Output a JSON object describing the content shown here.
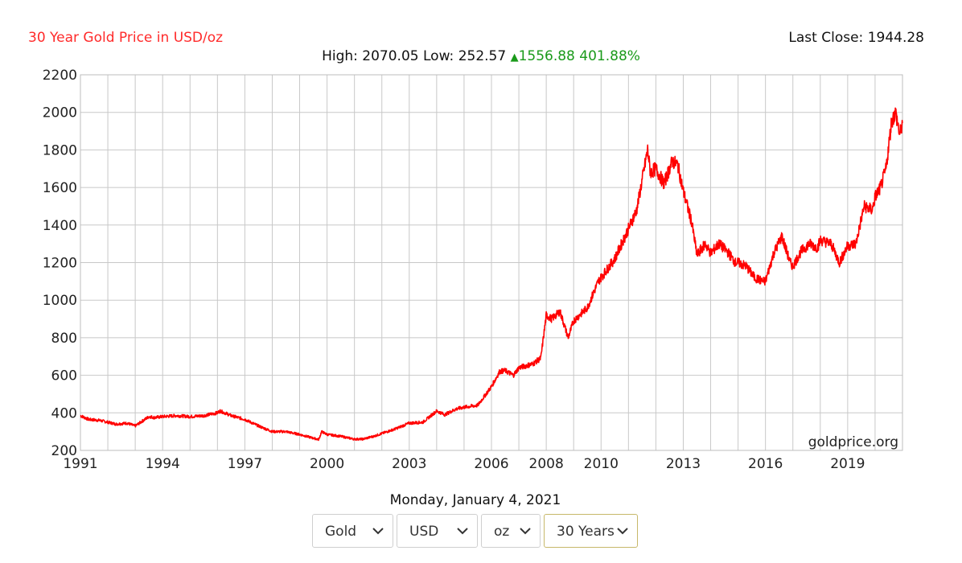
{
  "header": {
    "title": "30 Year Gold Price in USD/oz",
    "last_close_label": "Last Close:",
    "last_close_value": "1944.28",
    "high_label": "High:",
    "high_value": "2070.05",
    "low_label": "Low:",
    "low_value": "252.57",
    "change_value": "1556.88",
    "change_pct": "401.88%",
    "change_direction": "up"
  },
  "watermark": "goldprice.org",
  "date_text": "Monday, January 4, 2021",
  "controls": {
    "metal": "Gold",
    "currency": "USD",
    "unit": "oz",
    "range": "30 Years"
  },
  "colors": {
    "line": "#ff0000",
    "title": "#ff2a2a",
    "change": "#1a9a1a",
    "grid": "#c8c8c8"
  },
  "chart_data": {
    "type": "line",
    "title": "30 Year Gold Price in USD/oz",
    "xlabel": "",
    "ylabel": "",
    "xlim": [
      1991.0,
      2021.0
    ],
    "ylim": [
      200,
      2200
    ],
    "y_ticks": [
      200,
      400,
      600,
      800,
      1000,
      1200,
      1400,
      1600,
      1800,
      2000,
      2200
    ],
    "x_tick_labels": [
      {
        "label": "1991",
        "x": 1991.0
      },
      {
        "label": "1994",
        "x": 1994.0
      },
      {
        "label": "1997",
        "x": 1997.0
      },
      {
        "label": "2000",
        "x": 2000.0
      },
      {
        "label": "2003",
        "x": 2003.0
      },
      {
        "label": "2006",
        "x": 2006.0
      },
      {
        "label": "2008",
        "x": 2008.0
      },
      {
        "label": "2010",
        "x": 2010.0
      },
      {
        "label": "2013",
        "x": 2013.0
      },
      {
        "label": "2016",
        "x": 2016.0
      },
      {
        "label": "2019",
        "x": 2019.0
      }
    ],
    "grid": true,
    "series": [
      {
        "name": "Gold",
        "x": [
          1991.0,
          1991.3,
          1991.7,
          1992.0,
          1992.3,
          1992.7,
          1993.0,
          1993.2,
          1993.5,
          1993.7,
          1994.0,
          1994.5,
          1995.0,
          1995.5,
          1996.0,
          1996.1,
          1996.5,
          1997.0,
          1997.5,
          1998.0,
          1998.5,
          1999.0,
          1999.5,
          1999.7,
          1999.8,
          2000.0,
          2000.5,
          2001.0,
          2001.3,
          2001.7,
          2002.0,
          2002.5,
          2003.0,
          2003.5,
          2004.0,
          2004.3,
          2004.7,
          2005.0,
          2005.5,
          2006.0,
          2006.3,
          2006.5,
          2006.8,
          2007.0,
          2007.5,
          2007.8,
          2008.0,
          2008.2,
          2008.5,
          2008.8,
          2009.0,
          2009.5,
          2009.9,
          2010.0,
          2010.5,
          2011.0,
          2011.3,
          2011.7,
          2011.8,
          2012.0,
          2012.3,
          2012.6,
          2012.8,
          2013.0,
          2013.3,
          2013.5,
          2013.8,
          2014.0,
          2014.3,
          2014.6,
          2014.9,
          2015.0,
          2015.3,
          2015.6,
          2015.9,
          2016.0,
          2016.3,
          2016.6,
          2016.9,
          2017.0,
          2017.3,
          2017.6,
          2017.9,
          2018.0,
          2018.4,
          2018.7,
          2019.0,
          2019.3,
          2019.6,
          2019.9,
          2020.0,
          2020.2,
          2020.4,
          2020.6,
          2020.75,
          2020.9,
          2021.0
        ],
        "y": [
          385,
          365,
          360,
          350,
          340,
          345,
          330,
          350,
          380,
          375,
          380,
          385,
          380,
          385,
          400,
          410,
          385,
          365,
          330,
          300,
          300,
          285,
          265,
          258,
          300,
          285,
          275,
          260,
          260,
          275,
          290,
          315,
          345,
          350,
          410,
          390,
          420,
          430,
          440,
          540,
          620,
          625,
          600,
          640,
          660,
          690,
          920,
          900,
          940,
          800,
          890,
          960,
          1100,
          1120,
          1220,
          1380,
          1480,
          1800,
          1680,
          1700,
          1620,
          1740,
          1720,
          1580,
          1420,
          1240,
          1300,
          1250,
          1300,
          1260,
          1200,
          1200,
          1180,
          1120,
          1100,
          1100,
          1250,
          1340,
          1200,
          1180,
          1260,
          1300,
          1280,
          1320,
          1300,
          1200,
          1290,
          1300,
          1500,
          1480,
          1550,
          1600,
          1700,
          1950,
          2000,
          1880,
          1944
        ]
      }
    ]
  }
}
